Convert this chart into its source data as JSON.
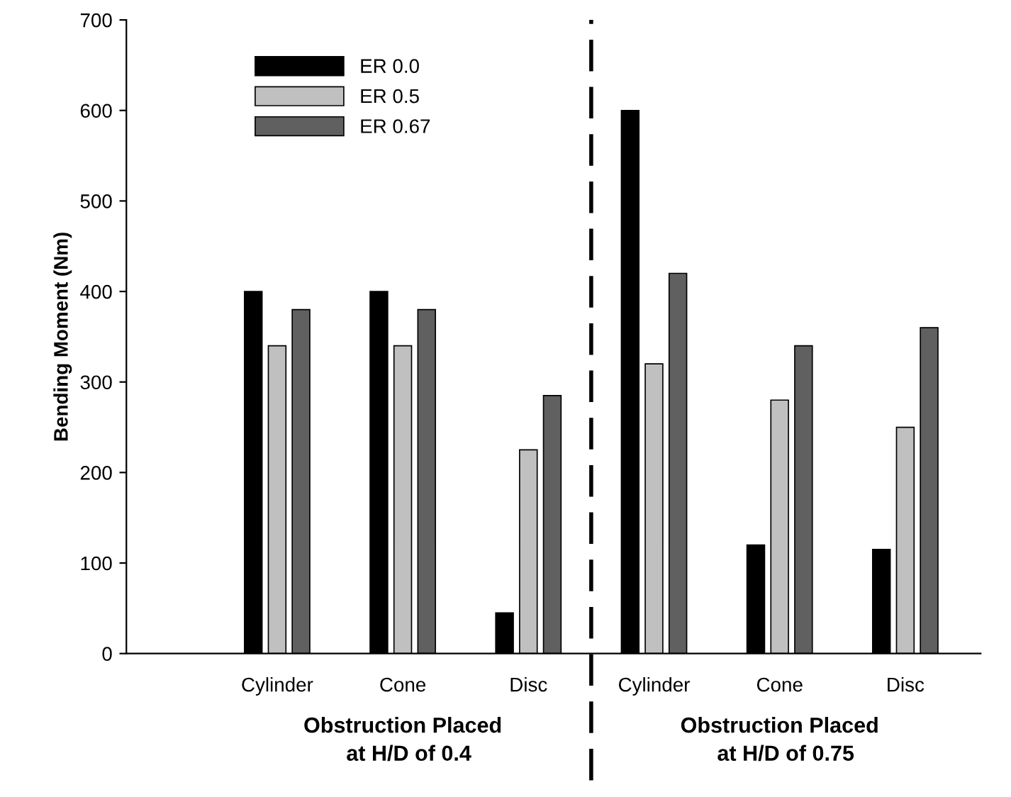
{
  "chart_data": {
    "type": "bar",
    "ylabel": "Bending Moment (Nm)",
    "categories": [
      "Cylinder",
      "Cone",
      "Disc",
      "Cylinder",
      "Cone",
      "Disc"
    ],
    "series": [
      {
        "name": "ER 0.0",
        "color": "#000000",
        "values": [
          400,
          400,
          45,
          600,
          120,
          115
        ]
      },
      {
        "name": "ER 0.5",
        "color": "#c0c0c0",
        "values": [
          340,
          340,
          225,
          320,
          280,
          250
        ]
      },
      {
        "name": "ER 0.67",
        "color": "#606060",
        "values": [
          380,
          380,
          285,
          420,
          340,
          360
        ]
      }
    ],
    "ylim": [
      0,
      700
    ],
    "yticks": [
      0,
      100,
      200,
      300,
      400,
      500,
      600,
      700
    ],
    "annotations": [
      "Obstruction Placed\n  at H/D of 0.4",
      "Obstruction Placed\n  at H/D of 0.75"
    ],
    "legend": "top left",
    "grid": false
  }
}
